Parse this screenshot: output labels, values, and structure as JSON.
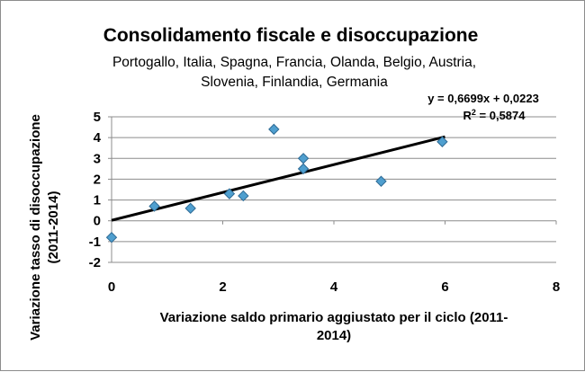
{
  "chart_data": {
    "type": "scatter",
    "title": "Consolidamento fiscale e disoccupazione",
    "subtitle_lines": [
      "Portogallo, Italia, Spagna, Francia, Olanda, Belgio,  Austria,",
      "Slovenia, Finlandia, Germania"
    ],
    "xlabel_lines": [
      "Variazione saldo primario aggiustato per il ciclo (2011-",
      "2014)"
    ],
    "ylabel_lines": [
      "Variazione tasso di disoccupazione",
      "(2011-2014)"
    ],
    "xlim": [
      0,
      8
    ],
    "ylim": [
      -2,
      5
    ],
    "x_ticks": [
      0,
      2,
      4,
      6,
      8
    ],
    "y_ticks": [
      -2,
      -1,
      0,
      1,
      2,
      3,
      4,
      5
    ],
    "grid": "horizontal",
    "legend": "none",
    "points": [
      {
        "x": 0.0,
        "y": -0.8
      },
      {
        "x": 0.77,
        "y": 0.7
      },
      {
        "x": 1.42,
        "y": 0.6
      },
      {
        "x": 2.12,
        "y": 1.3
      },
      {
        "x": 2.37,
        "y": 1.2
      },
      {
        "x": 2.92,
        "y": 4.4
      },
      {
        "x": 3.45,
        "y": 3.0
      },
      {
        "x": 3.45,
        "y": 2.5
      },
      {
        "x": 4.85,
        "y": 1.9
      },
      {
        "x": 5.95,
        "y": 3.8
      }
    ],
    "trendline": {
      "slope": 0.6699,
      "intercept": 0.0223,
      "x_range": [
        0,
        6
      ],
      "equation_label": "y = 0,6699x + 0,0223",
      "r2_prefix": "R",
      "r2_sup": "2",
      "r2_value": " = 0,5874"
    },
    "colors": {
      "marker_fill": "#4f9fcf",
      "marker_stroke": "#2e6a94",
      "trendline": "#000000",
      "gridline": "#8c8c8c",
      "axis": "#8c8c8c"
    }
  }
}
